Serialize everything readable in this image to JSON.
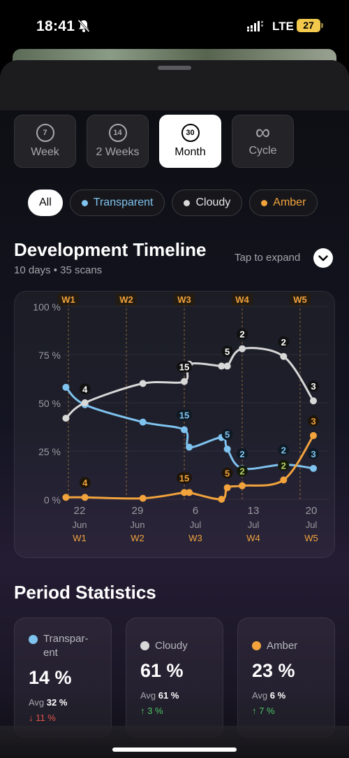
{
  "status": {
    "time": "18:41",
    "network": "LTE",
    "battery": "27"
  },
  "periods": [
    {
      "icon": "7",
      "label": "Week",
      "active": false
    },
    {
      "icon": "14",
      "label": "2 Weeks",
      "active": false
    },
    {
      "icon": "30",
      "label": "Month",
      "active": true
    },
    {
      "icon": "∞",
      "label": "Cycle",
      "active": false
    }
  ],
  "filters": [
    {
      "label": "All",
      "active": true
    },
    {
      "label": "Transparent",
      "color": "#7fc3ef"
    },
    {
      "label": "Cloudy",
      "color": "#e6e6e6"
    },
    {
      "label": "Amber",
      "color": "#f2a33c"
    }
  ],
  "timeline": {
    "title": "Development Timeline",
    "subtitle": "10 days • 35 scans",
    "expand_hint": "Tap to expand"
  },
  "chart_data": {
    "type": "line",
    "ylim": [
      0,
      100
    ],
    "y_ticks": [
      "100 %",
      "75 %",
      "50 %",
      "25 %",
      "0 %"
    ],
    "week_markers": [
      {
        "label": "W1",
        "day": 0
      },
      {
        "label": "W2",
        "day": 7
      },
      {
        "label": "W3",
        "day": 14
      },
      {
        "label": "W4",
        "day": 21
      },
      {
        "label": "W5",
        "day": 28
      }
    ],
    "x_ticks": [
      {
        "day": 22,
        "month": "Jun",
        "week": "W1"
      },
      {
        "day": 29,
        "month": "Jun",
        "week": "W2"
      },
      {
        "day": 6,
        "month": "Jul",
        "week": "W3"
      },
      {
        "day": 13,
        "month": "Jul",
        "week": "W4"
      },
      {
        "day": 20,
        "month": "Jul",
        "week": "W5"
      }
    ],
    "series": [
      {
        "name": "Transparent",
        "color": "#7fc3ef",
        "points": [
          [
            -0.3,
            58
          ],
          [
            2,
            49
          ],
          [
            9,
            40
          ],
          [
            14,
            36
          ],
          [
            14.6,
            27
          ],
          [
            18.5,
            32
          ],
          [
            19.2,
            26
          ],
          [
            21,
            16
          ],
          [
            26,
            18
          ],
          [
            29.6,
            16
          ]
        ]
      },
      {
        "name": "Cloudy",
        "color": "#d8d8d8",
        "points": [
          [
            -0.3,
            42
          ],
          [
            2,
            50
          ],
          [
            9,
            60
          ],
          [
            14,
            61
          ],
          [
            14.6,
            70
          ],
          [
            18.5,
            69
          ],
          [
            19.2,
            69
          ],
          [
            21,
            78
          ],
          [
            26,
            74
          ],
          [
            29.6,
            51
          ]
        ]
      },
      {
        "name": "Amber",
        "color": "#f2a33c",
        "points": [
          [
            -0.3,
            1
          ],
          [
            2,
            1
          ],
          [
            9,
            0.5
          ],
          [
            14,
            3.5
          ],
          [
            14.6,
            3.5
          ],
          [
            18.5,
            0
          ],
          [
            19.2,
            6
          ],
          [
            21,
            7
          ],
          [
            26,
            10
          ],
          [
            29.6,
            33
          ]
        ]
      }
    ],
    "annotations": [
      {
        "day": 2,
        "value": 49.5,
        "label": "4",
        "style": "white"
      },
      {
        "day": 2,
        "value": 1,
        "label": "4",
        "style": "amber"
      },
      {
        "day": 14,
        "value": 61,
        "label": "15",
        "style": "white"
      },
      {
        "day": 14,
        "value": 36,
        "label": "15",
        "style": "blue"
      },
      {
        "day": 14,
        "value": 3.5,
        "label": "15",
        "style": "amber"
      },
      {
        "day": 19.2,
        "value": 69,
        "label": "5",
        "style": "white"
      },
      {
        "day": 19.2,
        "value": 26,
        "label": "5",
        "style": "blue"
      },
      {
        "day": 19.2,
        "value": 6,
        "label": "5",
        "style": "amber"
      },
      {
        "day": 21,
        "value": 78,
        "label": "2",
        "style": "white"
      },
      {
        "day": 21,
        "value": 16,
        "label": "2",
        "style": "blue"
      },
      {
        "day": 21,
        "value": 7,
        "label": "2",
        "style": "green"
      },
      {
        "day": 26,
        "value": 74,
        "label": "2",
        "style": "white"
      },
      {
        "day": 26,
        "value": 18,
        "label": "2",
        "style": "blue"
      },
      {
        "day": 26,
        "value": 10,
        "label": "2",
        "style": "green"
      },
      {
        "day": 29.6,
        "value": 51,
        "label": "3",
        "style": "white"
      },
      {
        "day": 29.6,
        "value": 16,
        "label": "3",
        "style": "blue"
      },
      {
        "day": 29.6,
        "value": 33,
        "label": "3",
        "style": "amber"
      }
    ]
  },
  "statistics": {
    "title": "Period Statistics",
    "avg_label": "Avg",
    "cards": [
      {
        "name": "Transpar-\nent",
        "color": "#7fc3ef",
        "value": "14 %",
        "avg": "32 %",
        "change": "↓ 11 %",
        "trend": "down"
      },
      {
        "name": "Cloudy",
        "color": "#e6e6e6",
        "value": "61 %",
        "avg": "61 %",
        "change": "↑ 3 %",
        "trend": "up"
      },
      {
        "name": "Amber",
        "color": "#f2a33c",
        "value": "23 %",
        "avg": "6 %",
        "change": "↑ 7 %",
        "trend": "up"
      }
    ]
  }
}
